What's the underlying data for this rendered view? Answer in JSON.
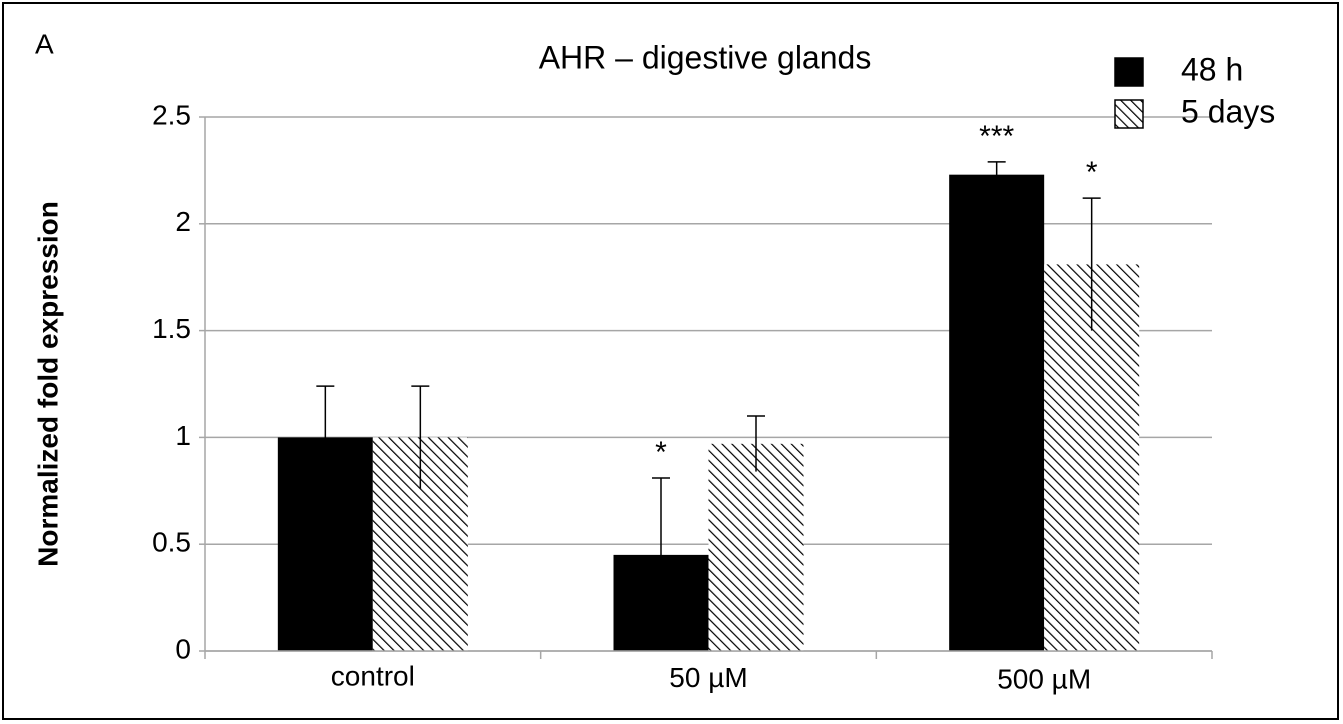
{
  "panel_label": "A",
  "chart_data": {
    "type": "bar",
    "title": "AHR – digestive glands",
    "ylabel": "Normalized fold expression",
    "categories": [
      "control",
      "50 µM",
      "500 µM"
    ],
    "series": [
      {
        "name": "48 h",
        "color": "#000000",
        "values": [
          1,
          0.45,
          2.23
        ],
        "errors": [
          0.24,
          0.36,
          0.06
        ]
      },
      {
        "name": "5 days",
        "color": "#ffffff",
        "pattern": "hatch",
        "values": [
          1,
          0.97,
          1.81
        ],
        "errors": [
          0.24,
          0.13,
          0.31
        ]
      }
    ],
    "ylim": [
      0,
      2.5
    ],
    "yticks": [
      0,
      0.5,
      1,
      1.5,
      2,
      2.5
    ],
    "grid": true,
    "legend": "top-right",
    "annotations": [
      {
        "text": "*",
        "series": 0,
        "category": 1
      },
      {
        "text": "***",
        "series": 0,
        "category": 2
      },
      {
        "text": "*",
        "series": 1,
        "category": 2
      }
    ]
  }
}
